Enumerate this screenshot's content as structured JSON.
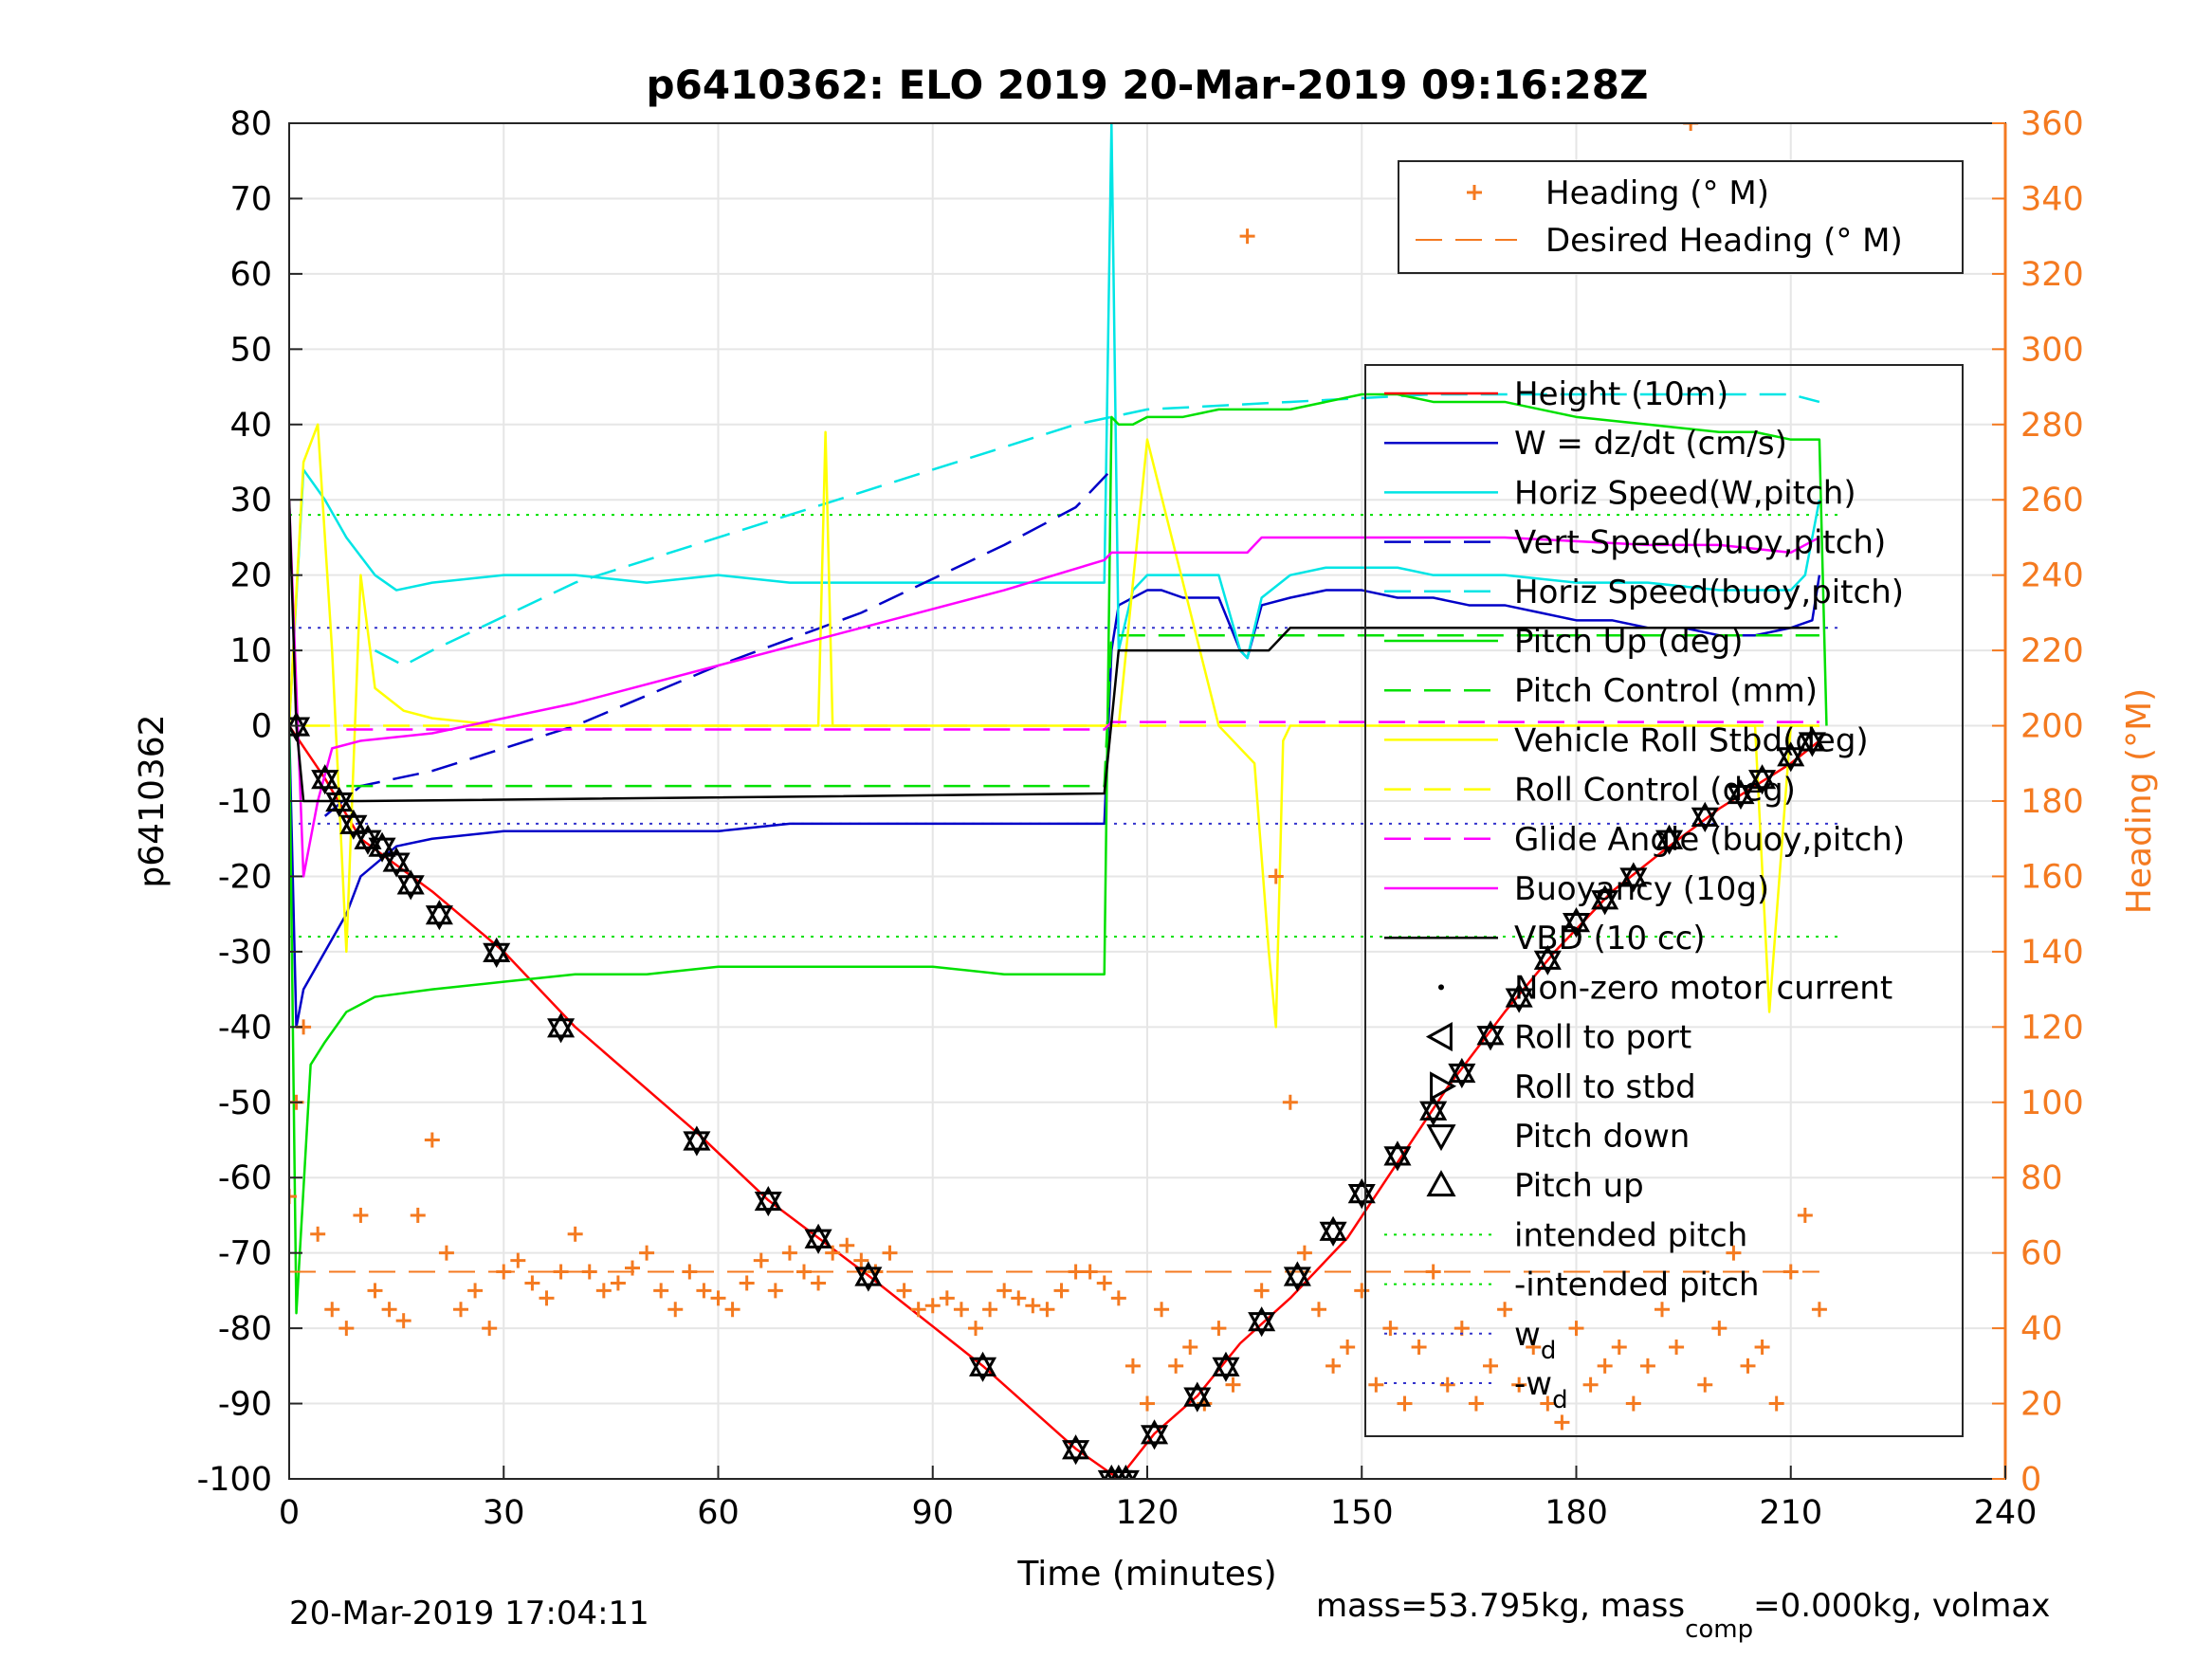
{
  "colors": {
    "heading": "#f47a20",
    "height": "#ff0000",
    "w": "#0000c8",
    "horiz_speed": "#00e5e5",
    "pitch": "#00e000",
    "roll": "#ffff00",
    "glide": "#ff00ff",
    "vbd": "#000000",
    "intended_pitch": "#00e000",
    "w_d": "#3333cc",
    "grid": "#e6e6e6"
  },
  "chart_data": {
    "type": "line",
    "title": "p6410362: ELO 2019 20-Mar-2019 09:16:28Z",
    "xlabel": "Time (minutes)",
    "ylabel": "p6410362",
    "ylabel_right": "Heading (°M)",
    "xlim": [
      0,
      240
    ],
    "ylim": [
      -100,
      80
    ],
    "ylim_right": [
      0,
      360
    ],
    "xticks": [
      "0",
      "30",
      "60",
      "90",
      "120",
      "150",
      "180",
      "210",
      "240"
    ],
    "yticks": [
      "80",
      "70",
      "60",
      "50",
      "40",
      "30",
      "20",
      "10",
      "0",
      "-10",
      "-20",
      "-30",
      "-40",
      "-50",
      "-60",
      "-70",
      "-80",
      "-90",
      "-100"
    ],
    "yticks_right": [
      "360",
      "340",
      "320",
      "300",
      "280",
      "260",
      "240",
      "220",
      "200",
      "180",
      "160",
      "140",
      "120",
      "100",
      "80",
      "60",
      "40",
      "20",
      "0"
    ],
    "grid": true,
    "legend_top": {
      "placement": "top-right",
      "entries": [
        "Heading (° M)",
        "Desired Heading (° M)"
      ]
    },
    "legend_main": {
      "placement": "right",
      "entries": [
        "Height (10m)",
        "W = dz/dt (cm/s)",
        "Horiz Speed(W,pitch)",
        "Vert Speed(buoy,pitch)",
        "Horiz Speed(buoy,pitch)",
        "Pitch Up (deg)",
        "Pitch Control (mm)",
        "Vehicle Roll Stbd(deg)",
        "Roll Control (deg)",
        "Glide Angle (buoy,pitch)",
        "Buoyancy (10g)",
        "VBD (10 cc)",
        "Non-zero motor current",
        "Roll to port",
        "Roll to stbd",
        "Pitch down",
        "Pitch up",
        "intended pitch",
        "-intended pitch",
        "w",
        "-w"
      ],
      "subscripts": {
        "19": "d",
        "20": "d"
      }
    },
    "series": [
      {
        "name": "Height (10m)",
        "axis": "left",
        "style": "solid",
        "x": [
          0,
          5,
          10,
          20,
          30,
          40,
          57,
          67,
          74,
          81,
          97,
          110,
          116,
          121,
          127,
          133,
          140,
          148,
          155,
          162,
          170,
          177,
          185,
          193,
          200,
          205,
          210,
          214
        ],
        "y": [
          0,
          -7,
          -15,
          -22,
          -30,
          -40,
          -54,
          -63,
          -68,
          -73,
          -85,
          -96,
          -100,
          -94,
          -89,
          -82,
          -76,
          -68,
          -58,
          -48,
          -38,
          -30,
          -22,
          -16,
          -11,
          -8,
          -5,
          -2
        ]
      },
      {
        "name": "W = dz/dt (cm/s)",
        "axis": "left",
        "style": "solid",
        "x": [
          0,
          1,
          2,
          5,
          8,
          10,
          15,
          20,
          30,
          40,
          50,
          60,
          70,
          80,
          90,
          100,
          110,
          114,
          115,
          116,
          118,
          120,
          122,
          125,
          130,
          133,
          134,
          136,
          140,
          145,
          150,
          155,
          160,
          165,
          170,
          175,
          180,
          185,
          190,
          195,
          200,
          205,
          210,
          213,
          214
        ],
        "y": [
          0,
          -40,
          -35,
          -30,
          -25,
          -20,
          -16,
          -15,
          -14,
          -14,
          -14,
          -14,
          -13,
          -13,
          -13,
          -13,
          -13,
          -13,
          10,
          16,
          17,
          18,
          18,
          17,
          17,
          10,
          9,
          16,
          17,
          18,
          18,
          17,
          17,
          16,
          16,
          15,
          14,
          14,
          13,
          13,
          12,
          12,
          13,
          14,
          20
        ]
      },
      {
        "name": "Horiz Speed(W,pitch)",
        "axis": "left",
        "style": "solid",
        "x": [
          0,
          2,
          5,
          8,
          12,
          15,
          20,
          30,
          40,
          50,
          60,
          70,
          80,
          90,
          100,
          110,
          114,
          115,
          116,
          118,
          120,
          125,
          130,
          133,
          134,
          136,
          140,
          145,
          150,
          155,
          160,
          170,
          180,
          190,
          200,
          205,
          210,
          212,
          214
        ],
        "y": [
          0,
          34,
          30,
          25,
          20,
          18,
          19,
          20,
          20,
          19,
          20,
          19,
          19,
          19,
          19,
          19,
          19,
          80,
          10,
          18,
          20,
          20,
          20,
          10,
          9,
          17,
          20,
          21,
          21,
          21,
          20,
          20,
          19,
          19,
          18,
          18,
          18,
          20,
          30
        ]
      },
      {
        "name": "Vert Speed(buoy,pitch)",
        "axis": "left",
        "style": "dashed",
        "x": [
          5,
          10,
          20,
          40,
          60,
          80,
          100,
          110,
          115
        ],
        "y": [
          -12,
          -8,
          -6,
          0,
          8,
          15,
          24,
          29,
          34
        ]
      },
      {
        "name": "Horiz Speed(buoy,pitch)",
        "axis": "left",
        "style": "dashed",
        "x": [
          12,
          16,
          20,
          40,
          60,
          80,
          100,
          110,
          115,
          120,
          140,
          160,
          180,
          200,
          210,
          214
        ],
        "y": [
          10,
          8,
          10,
          19,
          25,
          31,
          37,
          40,
          41,
          42,
          43,
          44,
          44,
          44,
          44,
          43
        ]
      },
      {
        "name": "Pitch Up (deg)",
        "axis": "left",
        "style": "solid",
        "x": [
          0,
          1,
          3,
          5,
          8,
          12,
          20,
          30,
          40,
          50,
          60,
          70,
          80,
          90,
          100,
          110,
          114,
          115,
          116,
          118,
          120,
          125,
          130,
          133,
          135,
          140,
          145,
          150,
          155,
          160,
          170,
          180,
          190,
          200,
          205,
          210,
          214,
          215
        ],
        "y": [
          0,
          -78,
          -45,
          -42,
          -38,
          -36,
          -35,
          -34,
          -33,
          -33,
          -32,
          -32,
          -32,
          -32,
          -33,
          -33,
          -33,
          41,
          40,
          40,
          41,
          41,
          42,
          42,
          42,
          42,
          43,
          44,
          44,
          43,
          43,
          41,
          40,
          39,
          39,
          38,
          38,
          0
        ]
      },
      {
        "name": "Pitch Control (mm)",
        "axis": "left",
        "style": "dashed",
        "x": [
          8,
          114,
          115,
          214
        ],
        "y": [
          -8,
          -8,
          12,
          12
        ]
      },
      {
        "name": "Vehicle Roll Stbd(deg)",
        "axis": "left",
        "style": "solid",
        "x": [
          0,
          2,
          4,
          6,
          8,
          10,
          12,
          16,
          20,
          30,
          40,
          50,
          60,
          70,
          74,
          75,
          76,
          80,
          90,
          100,
          110,
          114,
          116,
          120,
          130,
          135,
          137,
          138,
          139,
          140,
          150,
          160,
          170,
          180,
          190,
          200,
          205,
          207,
          210,
          214
        ],
        "y": [
          0,
          35,
          40,
          10,
          -30,
          20,
          5,
          2,
          1,
          0,
          0,
          0,
          0,
          0,
          0,
          39,
          0,
          0,
          0,
          0,
          0,
          0,
          0,
          38,
          0,
          -5,
          -30,
          -40,
          -2,
          0,
          0,
          0,
          0,
          0,
          0,
          0,
          0,
          -38,
          0,
          0
        ]
      },
      {
        "name": "Roll Control (deg)",
        "axis": "left",
        "style": "dashed",
        "x": [
          2,
          114,
          116,
          214
        ],
        "y": [
          0,
          0,
          0,
          0
        ]
      },
      {
        "name": "Glide Angle (buoy,pitch)",
        "axis": "left",
        "style": "dashed",
        "x": [
          8,
          114,
          115,
          214
        ],
        "y": [
          -0.5,
          -0.5,
          0.5,
          0.5
        ]
      },
      {
        "name": "Buoyancy (10g)",
        "axis": "left",
        "style": "solid",
        "x": [
          0,
          2,
          4,
          6,
          10,
          20,
          40,
          60,
          80,
          100,
          114,
          115,
          134,
          136,
          150,
          170,
          190,
          200,
          210,
          214
        ],
        "y": [
          30,
          -20,
          -10,
          -3,
          -2,
          -1,
          3,
          8,
          13,
          18,
          22,
          23,
          23,
          25,
          25,
          25,
          24,
          24,
          23,
          25
        ]
      },
      {
        "name": "VBD (10 cc)",
        "axis": "left",
        "style": "solid",
        "x": [
          0,
          1,
          2,
          10,
          114,
          116,
          120,
          137,
          140,
          214
        ],
        "y": [
          30,
          0,
          -10,
          -10,
          -9,
          10,
          10,
          10,
          13,
          13
        ]
      },
      {
        "name": "Heading (° M)",
        "axis": "right",
        "style": "markers",
        "x": [
          0,
          1,
          2,
          4,
          6,
          8,
          10,
          12,
          14,
          16,
          18,
          20,
          22,
          24,
          26,
          28,
          30,
          32,
          34,
          36,
          38,
          40,
          42,
          44,
          46,
          48,
          50,
          52,
          54,
          56,
          58,
          60,
          62,
          64,
          66,
          68,
          70,
          72,
          74,
          76,
          78,
          80,
          82,
          84,
          86,
          88,
          90,
          92,
          94,
          96,
          98,
          100,
          102,
          104,
          106,
          108,
          110,
          112,
          114,
          116,
          118,
          120,
          122,
          124,
          126,
          128,
          130,
          132,
          134,
          136,
          138,
          140,
          142,
          144,
          146,
          148,
          150,
          152,
          154,
          156,
          158,
          160,
          162,
          164,
          166,
          168,
          170,
          172,
          174,
          176,
          178,
          180,
          182,
          184,
          186,
          188,
          190,
          192,
          194,
          196,
          198,
          200,
          202,
          204,
          206,
          208,
          210,
          212,
          214
        ],
        "y": [
          75,
          100,
          120,
          65,
          45,
          40,
          70,
          50,
          45,
          42,
          70,
          90,
          60,
          45,
          50,
          40,
          55,
          58,
          52,
          48,
          55,
          65,
          55,
          50,
          52,
          56,
          60,
          50,
          45,
          55,
          50,
          48,
          45,
          52,
          58,
          50,
          60,
          55,
          52,
          60,
          62,
          58,
          55,
          60,
          50,
          45,
          46,
          48,
          45,
          40,
          45,
          50,
          48,
          46,
          45,
          50,
          55,
          55,
          52,
          48,
          30,
          20,
          45,
          30,
          35,
          20,
          40,
          25,
          330,
          50,
          160,
          100,
          60,
          45,
          30,
          35,
          50,
          25,
          40,
          20,
          35,
          55,
          25,
          40,
          20,
          30,
          45,
          25,
          35,
          20,
          15,
          40,
          25,
          30,
          35,
          20,
          30,
          45,
          35,
          360,
          25,
          40,
          60,
          30,
          35,
          20,
          55,
          70,
          45
        ]
      },
      {
        "name": "Desired Heading (° M)",
        "axis": "right",
        "style": "dashed",
        "x": [
          0,
          214
        ],
        "y": [
          55,
          55
        ]
      }
    ],
    "markers": {
      "pitch_up_x": [
        1,
        5,
        7,
        9,
        11,
        13,
        15,
        17,
        21,
        29,
        38,
        57,
        67,
        74,
        81,
        97,
        110,
        115,
        116,
        117,
        121,
        127,
        131,
        136,
        141,
        146,
        150,
        155,
        160,
        164,
        168,
        172,
        176,
        180,
        184,
        188,
        193,
        198,
        203,
        206,
        210,
        213
      ],
      "pitch_up_y": [
        0,
        -7,
        -10,
        -13,
        -15,
        -16,
        -18,
        -21,
        -25,
        -30,
        -40,
        -55,
        -63,
        -68,
        -73,
        -85,
        -96,
        -100,
        -100,
        -100,
        -94,
        -89,
        -85,
        -79,
        -73,
        -67,
        -62,
        -57,
        -51,
        -46,
        -41,
        -36,
        -31,
        -26,
        -23,
        -20,
        -15,
        -12,
        -9,
        -7,
        -4,
        -2
      ]
    },
    "reference_lines": {
      "intended_pitch": [
        28,
        -28
      ],
      "w_d": [
        13,
        -13
      ]
    },
    "footer_left": "20-Mar-2019 17:04:11",
    "footer_right": {
      "pre": "mass=53.795kg, mass",
      "sub": "comp",
      "post": "=0.000kg, volmax"
    }
  }
}
